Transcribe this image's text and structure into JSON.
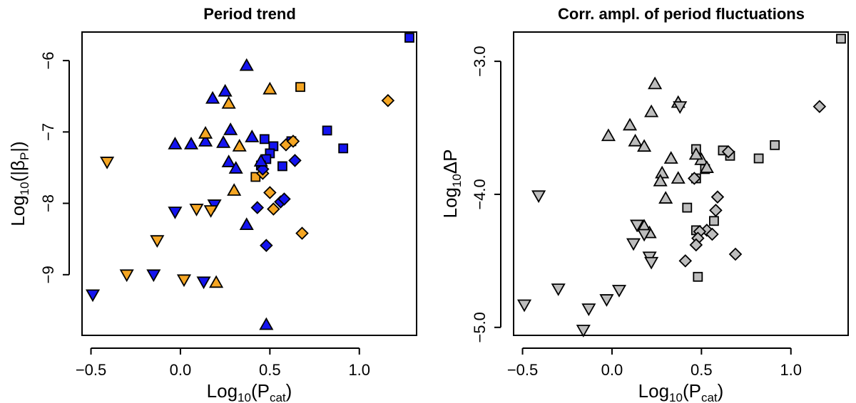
{
  "marker_legend_note": "",
  "colors": {
    "blue": "#1414f0",
    "orange": "#f5a623",
    "gray": "#bdbdbd"
  },
  "chart_data": [
    {
      "type": "scatter",
      "title": "Period trend",
      "xlabel": {
        "main": "Log",
        "sub": "10",
        "paren_main": "(P",
        "paren_sub": "cat",
        "close": ")"
      },
      "ylabel": {
        "main": "Log",
        "sub": "10",
        "paren_main": "(|β",
        "paren_sub": "P",
        "close": "|)"
      },
      "xlim": [
        -0.55,
        1.32
      ],
      "ylim": [
        -9.85,
        -5.6
      ],
      "xticks": [
        -0.5,
        0.0,
        0.5,
        1.0
      ],
      "xtick_labels": [
        "−0.5",
        "0.0",
        "0.5",
        "1.0"
      ],
      "yticks": [
        -9,
        -8,
        -7,
        -6
      ],
      "ytick_labels": [
        "−9",
        "−8",
        "−7",
        "−6"
      ],
      "grid": false,
      "series": [
        {
          "marker": "square",
          "color": "blue",
          "points": [
            [
              1.28,
              -5.68
            ],
            [
              0.82,
              -6.98
            ],
            [
              0.91,
              -7.23
            ],
            [
              0.47,
              -7.1
            ],
            [
              0.52,
              -7.2
            ],
            [
              0.5,
              -7.3
            ],
            [
              0.48,
              -7.38
            ],
            [
              0.62,
              -7.13
            ],
            [
              0.57,
              -7.48
            ],
            [
              0.45,
              -7.47
            ]
          ]
        },
        {
          "marker": "square",
          "color": "orange",
          "points": [
            [
              0.67,
              -6.37
            ],
            [
              0.42,
              -7.63
            ]
          ]
        },
        {
          "marker": "diamond",
          "color": "orange",
          "points": [
            [
              1.16,
              -6.56
            ],
            [
              0.59,
              -7.18
            ],
            [
              0.63,
              -7.13
            ],
            [
              0.5,
              -7.85
            ],
            [
              0.52,
              -8.08
            ],
            [
              0.68,
              -8.42
            ],
            [
              0.46,
              -7.58
            ]
          ]
        },
        {
          "marker": "diamond",
          "color": "blue",
          "points": [
            [
              0.64,
              -7.4
            ],
            [
              0.46,
              -7.52
            ],
            [
              0.43,
              -8.06
            ],
            [
              0.56,
              -7.98
            ],
            [
              0.58,
              -7.94
            ],
            [
              0.48,
              -8.59
            ]
          ]
        },
        {
          "marker": "triangle-up",
          "color": "blue",
          "points": [
            [
              0.37,
              -6.07
            ],
            [
              0.18,
              -6.53
            ],
            [
              0.25,
              -6.43
            ],
            [
              0.28,
              -6.97
            ],
            [
              0.14,
              -7.13
            ],
            [
              -0.03,
              -7.17
            ],
            [
              0.06,
              -7.17
            ],
            [
              0.4,
              -7.07
            ],
            [
              0.24,
              -7.15
            ],
            [
              0.27,
              -7.42
            ],
            [
              0.31,
              -7.51
            ],
            [
              0.45,
              -7.41
            ],
            [
              0.37,
              -8.3
            ],
            [
              0.48,
              -9.7
            ]
          ]
        },
        {
          "marker": "triangle-up",
          "color": "orange",
          "points": [
            [
              0.5,
              -6.4
            ],
            [
              0.27,
              -6.6
            ],
            [
              0.14,
              -7.02
            ],
            [
              0.33,
              -7.2
            ],
            [
              0.3,
              -7.82
            ],
            [
              0.2,
              -9.11
            ]
          ]
        },
        {
          "marker": "triangle-down",
          "color": "blue",
          "points": [
            [
              -0.49,
              -9.28
            ],
            [
              -0.15,
              -9.0
            ],
            [
              -0.03,
              -8.12
            ],
            [
              0.19,
              -8.02
            ],
            [
              0.13,
              -9.1
            ]
          ]
        },
        {
          "marker": "triangle-down",
          "color": "orange",
          "points": [
            [
              -0.41,
              -7.42
            ],
            [
              -0.3,
              -9.0
            ],
            [
              -0.13,
              -8.52
            ],
            [
              0.02,
              -9.07
            ],
            [
              0.09,
              -8.08
            ],
            [
              0.17,
              -8.1
            ]
          ]
        }
      ]
    },
    {
      "type": "scatter",
      "title": "Corr. ampl. of period fluctuations",
      "xlabel": {
        "main": "Log",
        "sub": "10",
        "paren_main": "(P",
        "paren_sub": "cat",
        "close": ")"
      },
      "ylabel": {
        "main": "Log",
        "sub": "10",
        "paren_main": "ΔP",
        "paren_sub": "",
        "close": ""
      },
      "xlim": [
        -0.55,
        1.32
      ],
      "ylim": [
        -5.06,
        -2.78
      ],
      "xticks": [
        -0.5,
        0.0,
        0.5,
        1.0
      ],
      "xtick_labels": [
        "−0.5",
        "0.0",
        "0.5",
        "1.0"
      ],
      "yticks": [
        -5,
        -4,
        -3
      ],
      "ytick_labels": [
        "−5.0",
        "−4.0",
        "−3.0"
      ],
      "grid": false,
      "series": [
        {
          "marker": "square",
          "color": "gray",
          "points": [
            [
              1.28,
              -2.83
            ],
            [
              0.47,
              -3.66
            ],
            [
              0.62,
              -3.67
            ],
            [
              0.66,
              -3.71
            ],
            [
              0.82,
              -3.73
            ],
            [
              0.91,
              -3.63
            ],
            [
              0.52,
              -3.81
            ],
            [
              0.47,
              -3.88
            ],
            [
              0.42,
              -4.1
            ],
            [
              0.47,
              -4.27
            ],
            [
              0.57,
              -4.2
            ],
            [
              0.48,
              -4.62
            ]
          ]
        },
        {
          "marker": "diamond",
          "color": "gray",
          "points": [
            [
              1.16,
              -3.34
            ],
            [
              0.65,
              -3.68
            ],
            [
              0.46,
              -3.88
            ],
            [
              0.59,
              -4.02
            ],
            [
              0.58,
              -4.12
            ],
            [
              0.53,
              -4.27
            ],
            [
              0.49,
              -4.28
            ],
            [
              0.56,
              -4.3
            ],
            [
              0.48,
              -4.33
            ],
            [
              0.47,
              -4.38
            ],
            [
              0.41,
              -4.5
            ],
            [
              0.69,
              -4.45
            ]
          ]
        },
        {
          "marker": "triangle-up",
          "color": "gray",
          "points": [
            [
              0.24,
              -3.17
            ],
            [
              0.22,
              -3.38
            ],
            [
              0.37,
              -3.31
            ],
            [
              -0.02,
              -3.56
            ],
            [
              0.1,
              -3.48
            ],
            [
              0.13,
              -3.6
            ],
            [
              0.18,
              -3.64
            ],
            [
              0.33,
              -3.73
            ],
            [
              0.28,
              -3.84
            ],
            [
              0.27,
              -3.9
            ],
            [
              0.37,
              -3.88
            ],
            [
              0.3,
              -4.03
            ],
            [
              0.5,
              -3.74
            ],
            [
              0.53,
              -3.8
            ],
            [
              0.47,
              -3.7
            ],
            [
              0.18,
              -4.24
            ],
            [
              0.21,
              -4.29
            ]
          ]
        },
        {
          "marker": "triangle-down",
          "color": "gray",
          "points": [
            [
              -0.41,
              -4.01
            ],
            [
              -0.49,
              -4.83
            ],
            [
              -0.3,
              -4.71
            ],
            [
              -0.16,
              -5.02
            ],
            [
              -0.13,
              -4.86
            ],
            [
              -0.03,
              -4.79
            ],
            [
              0.04,
              -4.72
            ],
            [
              0.12,
              -4.37
            ],
            [
              0.14,
              -4.23
            ],
            [
              0.18,
              -4.3
            ],
            [
              0.21,
              -4.47
            ],
            [
              0.22,
              -4.51
            ],
            [
              0.38,
              -3.34
            ]
          ]
        }
      ]
    }
  ]
}
